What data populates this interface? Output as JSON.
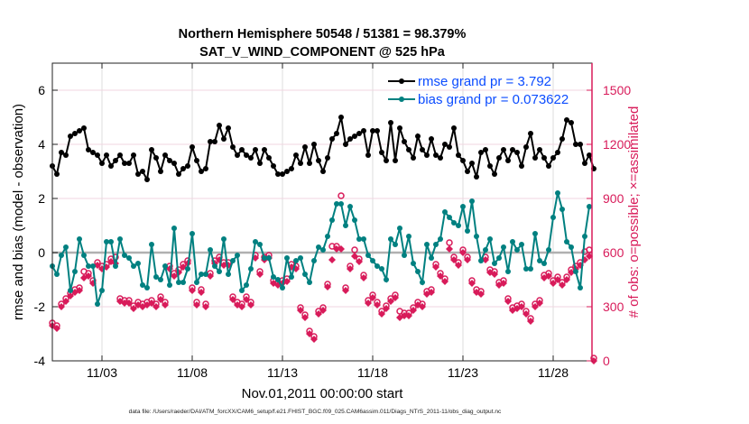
{
  "chart_data": {
    "type": "line",
    "title": [
      "Northern Hemisphere 50548 / 51381 = 98.379%",
      "SAT_V_WIND_COMPONENT @ 525 hPa"
    ],
    "xlabel": "Nov.01,2011 00:00:00 start",
    "ylabel_left": "rmse and bias (model - observation)",
    "ylabel_right": "# of obs: o=possible; ×=assimilated",
    "footnote": "data file: /Users/raeder/DAI/ATM_forcXX/CAM6_setup/f.e21.FHIST_BGC.f09_025.CAM6assim.011/Diags_NTrS_2011-11/obs_diag_output.nc",
    "x_units": "days since Nov.01,2011 00:00:00",
    "xlim": [
      -0.75,
      29.15
    ],
    "x_start": -0.75,
    "x_step": 0.25,
    "xticks": [
      2,
      7,
      12,
      17,
      22,
      27
    ],
    "xtick_labels": [
      "11/03",
      "11/08",
      "11/13",
      "11/18",
      "11/23",
      "11/28"
    ],
    "ylim_left": [
      -4,
      7
    ],
    "yticks_left": [
      -4,
      -2,
      0,
      2,
      4,
      6
    ],
    "ytick_labels_left": [
      "-4",
      "-2",
      "0",
      "2",
      "4",
      "6"
    ],
    "ylim_right": [
      0,
      1650
    ],
    "yticks_right": [
      0,
      300,
      600,
      900,
      1200,
      1500
    ],
    "ytick_labels_right": [
      "0",
      "300",
      "600",
      "900",
      "1200",
      "1500"
    ],
    "grid": true,
    "legend_position": "top-right",
    "colors": {
      "rmse": "#000000",
      "bias": "#008080",
      "obs": "#d81b5a",
      "legend_text": "#0b4cff",
      "zero_line": "#b0b0b0"
    },
    "series": [
      {
        "name": "rmse grand pr = 3.792",
        "key": "rmse",
        "values": [
          3.2,
          2.9,
          3.7,
          3.6,
          4.3,
          4.4,
          4.5,
          4.6,
          3.8,
          3.7,
          3.6,
          3.3,
          3.6,
          3.2,
          3.4,
          3.6,
          3.3,
          3.3,
          3.6,
          2.9,
          3.0,
          2.7,
          3.8,
          3.5,
          3.0,
          3.6,
          3.4,
          3.3,
          2.9,
          3.1,
          3.2,
          3.9,
          3.4,
          3.0,
          3.1,
          4.1,
          4.1,
          4.7,
          4.2,
          4.6,
          3.9,
          3.6,
          3.8,
          3.6,
          3.5,
          3.8,
          3.3,
          3.8,
          3.5,
          3.2,
          2.9,
          2.9,
          3.0,
          3.1,
          3.6,
          3.3,
          3.9,
          3.3,
          4.0,
          3.4,
          3.0,
          3.5,
          4.2,
          4.4,
          5.0,
          4.0,
          4.2,
          4.3,
          4.4,
          4.5,
          3.6,
          4.5,
          4.5,
          3.7,
          3.4,
          4.8,
          3.4,
          4.6,
          4.1,
          3.8,
          3.5,
          4.3,
          3.8,
          3.6,
          4.2,
          3.6,
          3.5,
          4.0,
          3.9,
          4.6,
          3.6,
          3.4,
          3.0,
          3.3,
          2.8,
          3.7,
          3.8,
          3.2,
          2.9,
          3.5,
          3.8,
          3.4,
          3.8,
          3.7,
          3.2,
          3.9,
          4.4,
          3.5,
          3.8,
          3.5,
          3.2,
          3.5,
          3.7,
          4.2,
          4.9,
          4.8,
          4.0,
          4.0,
          3.3,
          3.6,
          3.1
        ]
      },
      {
        "name": "bias grand pr = 0.073622",
        "key": "bias",
        "values": [
          -0.5,
          -0.8,
          -0.1,
          0.2,
          -1.4,
          -0.7,
          0.5,
          -0.1,
          -0.5,
          -0.5,
          -1.9,
          -1.4,
          0.4,
          0.4,
          -0.5,
          0.5,
          -0.1,
          -0.2,
          -0.5,
          -0.4,
          -1.2,
          -1.3,
          0.3,
          -0.9,
          -1.0,
          -0.5,
          -1.2,
          0.9,
          -1.1,
          -1.1,
          -0.6,
          0.7,
          -1.1,
          -0.8,
          -0.8,
          0.1,
          -0.5,
          -0.7,
          0.5,
          -0.8,
          -0.3,
          -0.1,
          -1.4,
          -1.2,
          -0.6,
          0.4,
          0.3,
          -0.2,
          -0.2,
          -0.9,
          -1.0,
          -1.3,
          -0.2,
          -0.9,
          -0.3,
          -0.2,
          -0.8,
          -1.1,
          -0.3,
          0.2,
          0.1,
          0.6,
          1.2,
          1.8,
          1.8,
          1.0,
          1.7,
          1.2,
          0.5,
          0.5,
          -0.1,
          -0.3,
          -0.5,
          -0.6,
          -1.0,
          0.5,
          0.3,
          0.9,
          -0.1,
          0.6,
          -0.4,
          -0.7,
          -1.1,
          0.3,
          -0.2,
          0.3,
          0.5,
          1.5,
          1.3,
          1.1,
          1.0,
          1.7,
          0.8,
          1.9,
          0.6,
          -0.3,
          0.1,
          0.5,
          -0.4,
          -0.2,
          0.2,
          -0.7,
          0.4,
          0.1,
          0.3,
          -0.6,
          -0.6,
          0.7,
          -0.3,
          -0.4,
          0.1,
          1.3,
          2.2,
          1.6,
          0.4,
          0.2,
          -0.7,
          -1.3,
          0.6,
          1.7
        ]
      },
      {
        "name": "assimilated",
        "key": "obs_used",
        "values": [
          195,
          180,
          300,
          330,
          360,
          380,
          390,
          460,
          470,
          430,
          530,
          510,
          520,
          550,
          540,
          330,
          320,
          320,
          290,
          310,
          300,
          310,
          320,
          300,
          340,
          310,
          510,
          470,
          490,
          520,
          540,
          390,
          310,
          380,
          300,
          470,
          540,
          560,
          530,
          530,
          340,
          310,
          300,
          340,
          310,
          570,
          480,
          560,
          570,
          430,
          420,
          430,
          440,
          520,
          510,
          280,
          240,
          150,
          120,
          260,
          280,
          410,
          560,
          620,
          620,
          390,
          510,
          580,
          550,
          460,
          320,
          350,
          310,
          260,
          290,
          330,
          350,
          240,
          250,
          250,
          280,
          310,
          300,
          370,
          380,
          520,
          470,
          440,
          620,
          560,
          530,
          600,
          560,
          430,
          380,
          370,
          560,
          490,
          480,
          420,
          430,
          330,
          280,
          290,
          300,
          260,
          220,
          300,
          320,
          460,
          470,
          430,
          450,
          420,
          450,
          490,
          510,
          530,
          560,
          580,
          0
        ]
      },
      {
        "name": "possible",
        "key": "obs_possible",
        "values": [
          195,
          180,
          300,
          330,
          360,
          380,
          390,
          480,
          470,
          430,
          530,
          510,
          520,
          550,
          560,
          330,
          320,
          320,
          290,
          310,
          300,
          310,
          320,
          300,
          340,
          310,
          510,
          470,
          490,
          520,
          540,
          390,
          310,
          380,
          300,
          470,
          540,
          560,
          530,
          530,
          340,
          310,
          300,
          340,
          310,
          570,
          480,
          560,
          570,
          430,
          420,
          430,
          440,
          520,
          510,
          280,
          240,
          150,
          120,
          260,
          280,
          410,
          620,
          620,
          900,
          390,
          510,
          600,
          550,
          460,
          320,
          350,
          310,
          260,
          290,
          330,
          350,
          260,
          250,
          250,
          280,
          310,
          300,
          370,
          380,
          520,
          470,
          440,
          640,
          560,
          530,
          600,
          560,
          430,
          380,
          370,
          560,
          490,
          480,
          420,
          430,
          330,
          280,
          290,
          300,
          260,
          220,
          300,
          320,
          460,
          470,
          430,
          450,
          420,
          450,
          490,
          510,
          530,
          590,
          600,
          0
        ]
      }
    ]
  }
}
